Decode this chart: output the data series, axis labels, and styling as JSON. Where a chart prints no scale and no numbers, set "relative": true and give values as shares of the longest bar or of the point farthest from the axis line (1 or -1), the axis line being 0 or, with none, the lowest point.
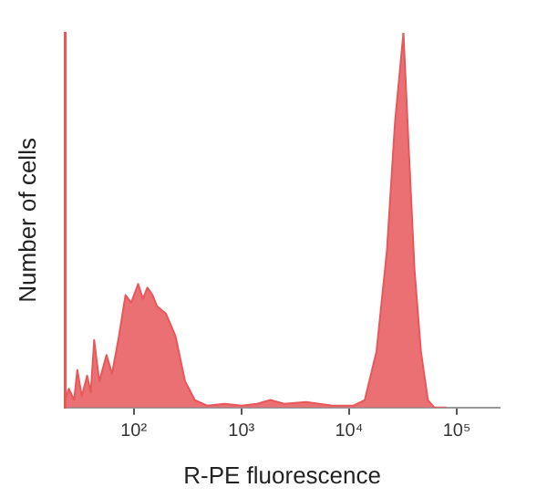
{
  "chart_data": {
    "type": "area",
    "xlabel": "R-PE fluorescence",
    "ylabel": "Number of cells",
    "relative": true,
    "log": "x",
    "tick_labels": "x",
    "grid": false,
    "legend": false,
    "xlim": [
      23,
      250000
    ],
    "xticks": [
      {
        "value": 100,
        "label": "10²"
      },
      {
        "value": 1000,
        "label": "10³"
      },
      {
        "value": 10000,
        "label": "10⁴"
      },
      {
        "value": 100000,
        "label": "10⁵"
      }
    ],
    "series": [
      {
        "color": "#e8575a",
        "x": [
          23,
          25,
          28,
          30,
          33,
          37,
          40,
          43,
          48,
          56,
          63,
          73,
          84,
          95,
          110,
          122,
          134,
          150,
          165,
          200,
          245,
          300,
          370,
          480,
          700,
          1000,
          1400,
          1860,
          2500,
          4000,
          7000,
          11000,
          14000,
          18000,
          22500,
          26700,
          32000,
          35600,
          40500,
          46500,
          54000,
          62000,
          80000
        ],
        "values": [
          0.02,
          0.05,
          0.02,
          0.1,
          0.03,
          0.085,
          0.04,
          0.18,
          0.07,
          0.14,
          0.09,
          0.19,
          0.3,
          0.28,
          0.33,
          0.29,
          0.32,
          0.3,
          0.27,
          0.25,
          0.19,
          0.07,
          0.02,
          0.005,
          0.01,
          0.005,
          0.01,
          0.02,
          0.01,
          0.015,
          0.005,
          0.005,
          0.02,
          0.15,
          0.42,
          0.76,
          1,
          0.71,
          0.37,
          0.15,
          0.02,
          0,
          0
        ]
      }
    ]
  }
}
